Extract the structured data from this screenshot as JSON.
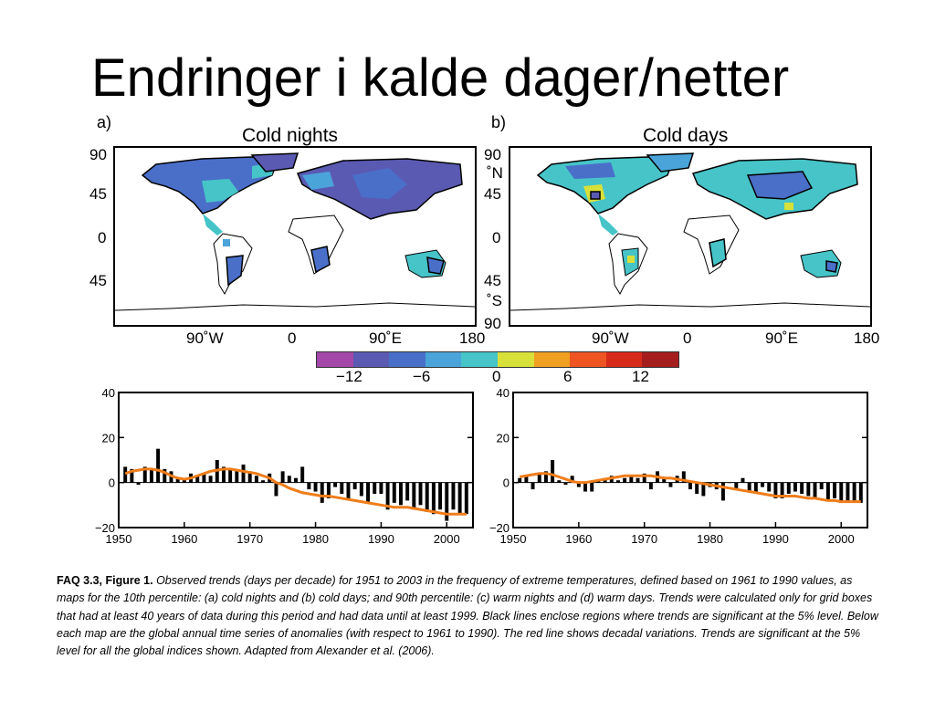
{
  "slide": {
    "title": "Endringer i kalde dager/netter"
  },
  "panels": [
    {
      "letter": "a)",
      "title": "Cold nights",
      "lat_labels": [
        "90",
        "45",
        "0",
        "45"
      ],
      "lon_labels": [
        "90˚W",
        "0",
        "90˚E",
        "180"
      ]
    },
    {
      "letter": "b)",
      "title": "Cold days",
      "lat_labels": [
        "90",
        "˚N",
        "45",
        "0",
        "45",
        "˚S",
        "90"
      ],
      "lon_labels": [
        "90˚W",
        "0",
        "90˚E",
        "180"
      ]
    }
  ],
  "colorbar": {
    "colors": [
      "#a347a8",
      "#5a5ab3",
      "#4a6fc9",
      "#4aa4d9",
      "#46c4c8",
      "#d8e03a",
      "#f0a020",
      "#ee5522",
      "#d62a1a",
      "#a51e1e"
    ],
    "ticks": [
      "−12",
      "−6",
      "0",
      "6",
      "12"
    ]
  },
  "colors": {
    "bar": "#000000",
    "smooth": "#ef7d1a",
    "grid_axis": "#000000"
  },
  "chart_data": [
    {
      "type": "bar",
      "title": "",
      "xlim": [
        1950,
        2004
      ],
      "ylim": [
        -20,
        40
      ],
      "yticks": [
        "40",
        "20",
        "0",
        "−20"
      ],
      "xticks": [
        "1950",
        "1960",
        "1970",
        "1980",
        "1990",
        "2000"
      ],
      "x": [
        1951,
        1952,
        1953,
        1954,
        1955,
        1956,
        1957,
        1958,
        1959,
        1960,
        1961,
        1962,
        1963,
        1964,
        1965,
        1966,
        1967,
        1968,
        1969,
        1970,
        1971,
        1972,
        1973,
        1974,
        1975,
        1976,
        1977,
        1978,
        1979,
        1980,
        1981,
        1982,
        1983,
        1984,
        1985,
        1986,
        1987,
        1988,
        1989,
        1990,
        1991,
        1992,
        1993,
        1994,
        1995,
        1996,
        1997,
        1998,
        1999,
        2000,
        2001,
        2002,
        2003
      ],
      "series": [
        {
          "values": [
            7,
            6,
            -1,
            7,
            6,
            15,
            6,
            5,
            2,
            2,
            4,
            3,
            4,
            3,
            10,
            7,
            6,
            6,
            8,
            5,
            3,
            1,
            4,
            -6,
            5,
            3,
            2,
            7,
            -3,
            -4,
            -9,
            -7,
            -2,
            -5,
            -7,
            -3,
            -6,
            -9,
            -5,
            -5,
            -12,
            -9,
            -10,
            -8,
            -12,
            -10,
            -13,
            -14,
            -12,
            -17,
            -12,
            -14,
            -14
          ]
        },
        {
          "values": [
            4,
            5,
            5.5,
            6,
            6,
            5.5,
            4.5,
            3,
            2,
            1.5,
            2,
            3,
            4,
            5,
            5.5,
            6,
            6,
            5.5,
            5,
            4.5,
            4,
            3,
            2,
            0,
            -1,
            -2.5,
            -3.5,
            -4.5,
            -5,
            -5.5,
            -6,
            -6,
            -6.5,
            -7,
            -7.5,
            -8,
            -8.5,
            -9,
            -9.5,
            -10,
            -10.5,
            -11,
            -11,
            -11,
            -11.5,
            -12,
            -12.5,
            -13,
            -13.5,
            -14,
            -14,
            -14,
            -14
          ]
        }
      ]
    },
    {
      "type": "bar",
      "title": "",
      "xlim": [
        1950,
        2004
      ],
      "ylim": [
        -20,
        40
      ],
      "yticks": [
        "40",
        "20",
        "0",
        "−20"
      ],
      "xticks": [
        "1950",
        "1960",
        "1970",
        "1980",
        "1990",
        "2000"
      ],
      "x": [
        1951,
        1952,
        1953,
        1954,
        1955,
        1956,
        1957,
        1958,
        1959,
        1960,
        1961,
        1962,
        1963,
        1964,
        1965,
        1966,
        1967,
        1968,
        1969,
        1970,
        1971,
        1972,
        1973,
        1974,
        1975,
        1976,
        1977,
        1978,
        1979,
        1980,
        1981,
        1982,
        1983,
        1984,
        1985,
        1986,
        1987,
        1988,
        1989,
        1990,
        1991,
        1992,
        1993,
        1994,
        1995,
        1996,
        1997,
        1998,
        1999,
        2000,
        2001,
        2002,
        2003
      ],
      "series": [
        {
          "values": [
            2,
            3,
            -3,
            4,
            5,
            10,
            1,
            -1,
            3,
            -2,
            -4,
            -4,
            1,
            2,
            3,
            1,
            2,
            3,
            2,
            4,
            -3,
            5,
            2,
            -2,
            3,
            5,
            -3,
            -5,
            -6,
            -2,
            -3,
            -8,
            0,
            -3,
            2,
            -4,
            -5,
            -2,
            -4,
            -7,
            -7,
            -5,
            -4,
            -5,
            -6,
            -7,
            -3,
            -8,
            -7,
            -9,
            -8,
            -8,
            -9
          ]
        },
        {
          "values": [
            2.5,
            3,
            3.5,
            4,
            4,
            3.5,
            2.5,
            1.5,
            0.5,
            0,
            0,
            0.5,
            1,
            1.5,
            2,
            2.5,
            3,
            3,
            3,
            3,
            3,
            2.5,
            2,
            2,
            1.5,
            1,
            0.5,
            0,
            -0.5,
            -1,
            -1.5,
            -2,
            -2.5,
            -3,
            -3.5,
            -4,
            -4.5,
            -5,
            -5.5,
            -6,
            -6,
            -6,
            -6,
            -6.5,
            -7,
            -7,
            -7.5,
            -8,
            -8,
            -8.5,
            -8.5,
            -8.5,
            -8.5
          ]
        }
      ]
    }
  ],
  "caption": {
    "label": "FAQ 3.3, Figure 1.",
    "text": "Observed trends (days per decade) for 1951 to 2003 in the frequency of extreme temperatures, defined based on 1961 to 1990 values, as maps for the 10th percentile: (a) cold nights and (b) cold days; and 90th percentile: (c) warm nights and (d) warm days. Trends were calculated only for grid boxes that had at least 40 years of data during this period and had data until at least 1999. Black lines enclose regions where trends are significant at the 5% level. Below each map are the global annual time series of anomalies (with respect to 1961 to 1990). The red line shows decadal variations. Trends are significant at the 5% level for all the global indices shown. Adapted from Alexander et al. (2006)."
  }
}
